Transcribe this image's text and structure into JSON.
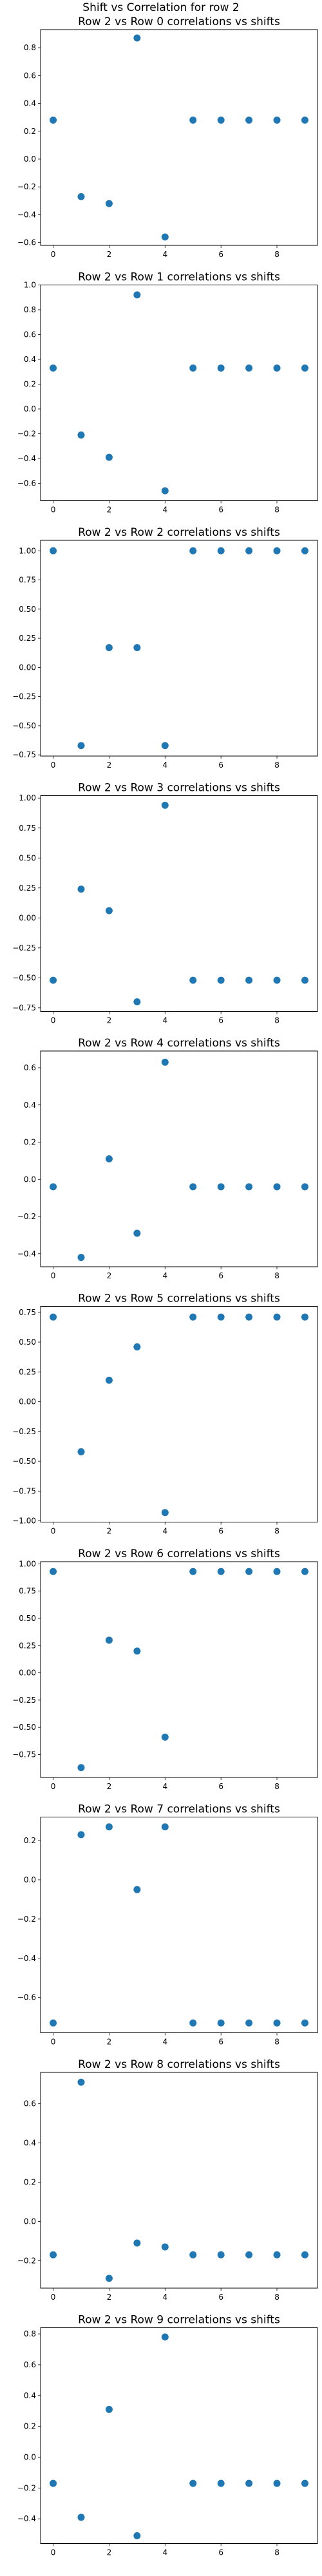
{
  "figure": {
    "suptitle": "Shift vs Correlation for row 2"
  },
  "chart_data": [
    {
      "type": "scatter",
      "title": "Row 2 vs Row 0 correlations vs shifts",
      "x": [
        0,
        1,
        2,
        3,
        4,
        5,
        6,
        7,
        8,
        9
      ],
      "y": [
        0.28,
        -0.27,
        -0.32,
        0.87,
        -0.56,
        0.28,
        0.28,
        0.28,
        0.28,
        0.28
      ],
      "ylim": [
        -0.62,
        0.93
      ],
      "xlim": [
        -0.45,
        9.45
      ],
      "xticks": [
        0,
        2,
        4,
        6,
        8
      ],
      "xtick_labels": [
        "0",
        "2",
        "4",
        "6",
        "8"
      ],
      "yticks": [
        -0.6,
        -0.4,
        -0.2,
        0.0,
        0.2,
        0.4,
        0.6,
        0.8
      ],
      "ytick_labels": [
        "−0.6",
        "−0.4",
        "−0.2",
        "0.0",
        "0.2",
        "0.4",
        "0.6",
        "0.8"
      ]
    },
    {
      "type": "scatter",
      "title": "Row 2 vs Row 1 correlations vs shifts",
      "x": [
        0,
        1,
        2,
        3,
        4,
        5,
        6,
        7,
        8,
        9
      ],
      "y": [
        0.33,
        -0.21,
        -0.39,
        0.92,
        -0.66,
        0.33,
        0.33,
        0.33,
        0.33,
        0.33
      ],
      "ylim": [
        -0.74,
        1.0
      ],
      "xlim": [
        -0.45,
        9.45
      ],
      "xticks": [
        0,
        2,
        4,
        6,
        8
      ],
      "xtick_labels": [
        "0",
        "2",
        "4",
        "6",
        "8"
      ],
      "yticks": [
        -0.6,
        -0.4,
        -0.2,
        0.0,
        0.2,
        0.4,
        0.6,
        0.8,
        1.0
      ],
      "ytick_labels": [
        "−0.6",
        "−0.4",
        "−0.2",
        "0.0",
        "0.2",
        "0.4",
        "0.6",
        "0.8",
        "1.0"
      ]
    },
    {
      "type": "scatter",
      "title": "Row 2 vs Row 2 correlations vs shifts",
      "x": [
        0,
        1,
        2,
        3,
        4,
        5,
        6,
        7,
        8,
        9
      ],
      "y": [
        1.0,
        -0.67,
        0.17,
        0.17,
        -0.67,
        1.0,
        1.0,
        1.0,
        1.0,
        1.0
      ],
      "ylim": [
        -0.76,
        1.09
      ],
      "xlim": [
        -0.45,
        9.45
      ],
      "xticks": [
        0,
        2,
        4,
        6,
        8
      ],
      "xtick_labels": [
        "0",
        "2",
        "4",
        "6",
        "8"
      ],
      "yticks": [
        -0.75,
        -0.5,
        -0.25,
        0.0,
        0.25,
        0.5,
        0.75,
        1.0
      ],
      "ytick_labels": [
        "−0.75",
        "−0.50",
        "−0.25",
        "0.00",
        "0.25",
        "0.50",
        "0.75",
        "1.00"
      ]
    },
    {
      "type": "scatter",
      "title": "Row 2 vs Row 3 correlations vs shifts",
      "x": [
        0,
        1,
        2,
        3,
        4,
        5,
        6,
        7,
        8,
        9
      ],
      "y": [
        -0.52,
        0.24,
        0.06,
        -0.7,
        0.94,
        -0.52,
        -0.52,
        -0.52,
        -0.52,
        -0.52
      ],
      "ylim": [
        -0.78,
        1.02
      ],
      "xlim": [
        -0.45,
        9.45
      ],
      "xticks": [
        0,
        2,
        4,
        6,
        8
      ],
      "xtick_labels": [
        "0",
        "2",
        "4",
        "6",
        "8"
      ],
      "yticks": [
        -0.75,
        -0.5,
        -0.25,
        0.0,
        0.25,
        0.5,
        0.75,
        1.0
      ],
      "ytick_labels": [
        "−0.75",
        "−0.50",
        "−0.25",
        "0.00",
        "0.25",
        "0.50",
        "0.75",
        "1.00"
      ]
    },
    {
      "type": "scatter",
      "title": "Row 2 vs Row 4 correlations vs shifts",
      "x": [
        0,
        1,
        2,
        3,
        4,
        5,
        6,
        7,
        8,
        9
      ],
      "y": [
        -0.04,
        -0.42,
        0.11,
        -0.29,
        0.63,
        -0.04,
        -0.04,
        -0.04,
        -0.04,
        -0.04
      ],
      "ylim": [
        -0.47,
        0.69
      ],
      "xlim": [
        -0.45,
        9.45
      ],
      "xticks": [
        0,
        2,
        4,
        6,
        8
      ],
      "xtick_labels": [
        "0",
        "2",
        "4",
        "6",
        "8"
      ],
      "yticks": [
        -0.4,
        -0.2,
        0.0,
        0.2,
        0.4,
        0.6
      ],
      "ytick_labels": [
        "−0.4",
        "−0.2",
        "0.0",
        "0.2",
        "0.4",
        "0.6"
      ]
    },
    {
      "type": "scatter",
      "title": "Row 2 vs Row 5 correlations vs shifts",
      "x": [
        0,
        1,
        2,
        3,
        4,
        5,
        6,
        7,
        8,
        9
      ],
      "y": [
        0.71,
        -0.42,
        0.18,
        0.46,
        -0.93,
        0.71,
        0.71,
        0.71,
        0.71,
        0.71
      ],
      "ylim": [
        -1.01,
        0.8
      ],
      "xlim": [
        -0.45,
        9.45
      ],
      "xticks": [
        0,
        2,
        4,
        6,
        8
      ],
      "xtick_labels": [
        "0",
        "2",
        "4",
        "6",
        "8"
      ],
      "yticks": [
        -1.0,
        -0.75,
        -0.5,
        -0.25,
        0.0,
        0.25,
        0.5,
        0.75
      ],
      "ytick_labels": [
        "−1.00",
        "−0.75",
        "−0.50",
        "−0.25",
        "0.00",
        "0.25",
        "0.50",
        "0.75"
      ]
    },
    {
      "type": "scatter",
      "title": "Row 2 vs Row 6 correlations vs shifts",
      "x": [
        0,
        1,
        2,
        3,
        4,
        5,
        6,
        7,
        8,
        9
      ],
      "y": [
        0.93,
        -0.87,
        0.3,
        0.2,
        -0.59,
        0.93,
        0.93,
        0.93,
        0.93,
        0.93
      ],
      "ylim": [
        -0.96,
        1.02
      ],
      "xlim": [
        -0.45,
        9.45
      ],
      "xticks": [
        0,
        2,
        4,
        6,
        8
      ],
      "xtick_labels": [
        "0",
        "2",
        "4",
        "6",
        "8"
      ],
      "yticks": [
        -0.75,
        -0.5,
        -0.25,
        0.0,
        0.25,
        0.5,
        0.75,
        1.0
      ],
      "ytick_labels": [
        "−0.75",
        "−0.50",
        "−0.25",
        "0.00",
        "0.25",
        "0.50",
        "0.75",
        "1.00"
      ]
    },
    {
      "type": "scatter",
      "title": "Row 2 vs Row 7 correlations vs shifts",
      "x": [
        0,
        1,
        2,
        3,
        4,
        5,
        6,
        7,
        8,
        9
      ],
      "y": [
        -0.73,
        0.23,
        0.27,
        -0.05,
        0.27,
        -0.73,
        -0.73,
        -0.73,
        -0.73,
        -0.73
      ],
      "ylim": [
        -0.78,
        0.32
      ],
      "xlim": [
        -0.45,
        9.45
      ],
      "xticks": [
        0,
        2,
        4,
        6,
        8
      ],
      "xtick_labels": [
        "0",
        "2",
        "4",
        "6",
        "8"
      ],
      "yticks": [
        -0.6,
        -0.4,
        -0.2,
        0.0,
        0.2
      ],
      "ytick_labels": [
        "−0.6",
        "−0.4",
        "−0.2",
        "0.0",
        "0.2"
      ]
    },
    {
      "type": "scatter",
      "title": "Row 2 vs Row 8 correlations vs shifts",
      "x": [
        0,
        1,
        2,
        3,
        4,
        5,
        6,
        7,
        8,
        9
      ],
      "y": [
        -0.17,
        0.71,
        -0.29,
        -0.11,
        -0.13,
        -0.17,
        -0.17,
        -0.17,
        -0.17,
        -0.17
      ],
      "ylim": [
        -0.34,
        0.76
      ],
      "xlim": [
        -0.45,
        9.45
      ],
      "xticks": [
        0,
        2,
        4,
        6,
        8
      ],
      "xtick_labels": [
        "0",
        "2",
        "4",
        "6",
        "8"
      ],
      "yticks": [
        -0.2,
        0.0,
        0.2,
        0.4,
        0.6
      ],
      "ytick_labels": [
        "−0.2",
        "0.0",
        "0.2",
        "0.4",
        "0.6"
      ]
    },
    {
      "type": "scatter",
      "title": "Row 2 vs Row 9 correlations vs shifts",
      "x": [
        0,
        1,
        2,
        3,
        4,
        5,
        6,
        7,
        8,
        9
      ],
      "y": [
        -0.17,
        -0.39,
        0.31,
        -0.51,
        0.78,
        -0.17,
        -0.17,
        -0.17,
        -0.17,
        -0.17
      ],
      "ylim": [
        -0.56,
        0.84
      ],
      "xlim": [
        -0.45,
        9.45
      ],
      "xticks": [
        0,
        2,
        4,
        6,
        8
      ],
      "xtick_labels": [
        "0",
        "2",
        "4",
        "6",
        "8"
      ],
      "yticks": [
        -0.4,
        -0.2,
        0.0,
        0.2,
        0.4,
        0.6,
        0.8
      ],
      "ytick_labels": [
        "−0.4",
        "−0.2",
        "0.0",
        "0.2",
        "0.4",
        "0.6",
        "0.8"
      ]
    }
  ]
}
